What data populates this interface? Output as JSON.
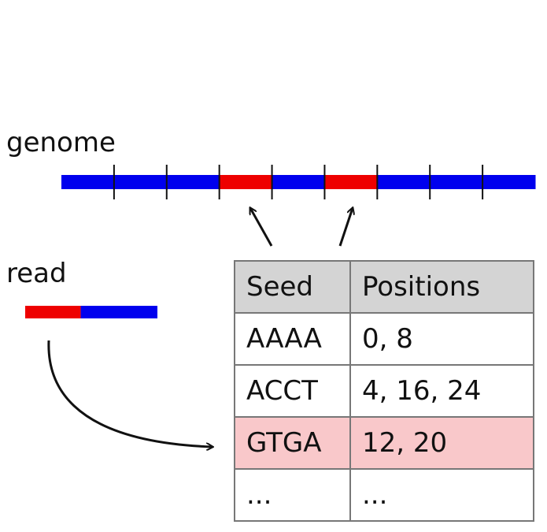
{
  "labels": {
    "genome": "genome",
    "read": "read"
  },
  "colors": {
    "base": "#0000ee",
    "seed": "#ee0000",
    "highlight_row": "#f9c8ca",
    "table_header": "#d4d4d4"
  },
  "genome": {
    "segments": 9,
    "seed_segments": [
      3,
      5
    ]
  },
  "read": {
    "seed_fraction": 0.42
  },
  "table": {
    "headers": [
      "Seed",
      "Positions"
    ],
    "rows": [
      {
        "seed": "AAAA",
        "positions": "0, 8",
        "highlight": false
      },
      {
        "seed": "ACCT",
        "positions": "4, 16, 24",
        "highlight": false
      },
      {
        "seed": "GTGA",
        "positions": "12, 20",
        "highlight": true
      },
      {
        "seed": "...",
        "positions": "...",
        "highlight": false
      }
    ]
  }
}
